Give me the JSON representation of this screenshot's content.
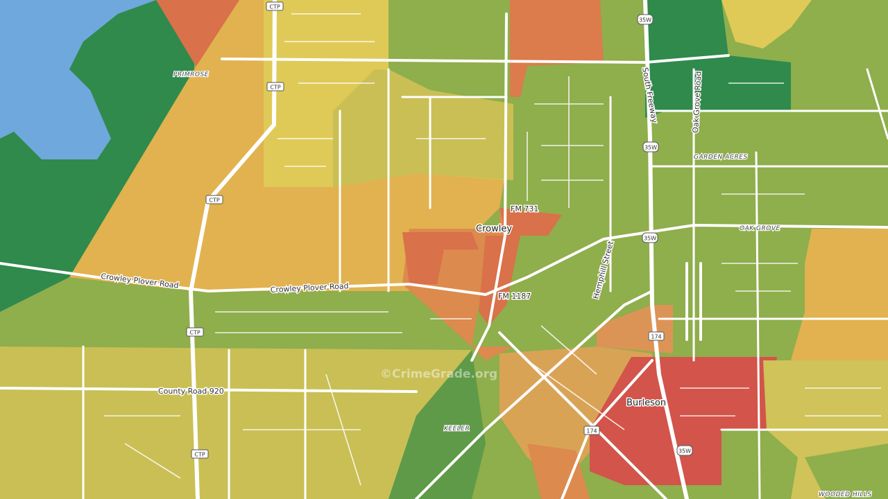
{
  "map": {
    "labels": [
      "PRIMROSE",
      "Crowley Plover Road",
      "Crowley Plover Road",
      "Crowley",
      "FM 731",
      "FM 1187",
      "South Freeway",
      "Oak Grove Road",
      "GARDEN ACRES",
      "OAK GROVE",
      "Hemphill Street",
      "County Road 920",
      "Burleson",
      "KEELER",
      "WOODED HILLS"
    ],
    "shields": [
      "CTP",
      "CTP",
      "CTP",
      "CTP",
      "CTP",
      "35W",
      "35W",
      "35W",
      "35W",
      "174",
      "174"
    ],
    "watermark": "©CrimeGrade.org"
  }
}
